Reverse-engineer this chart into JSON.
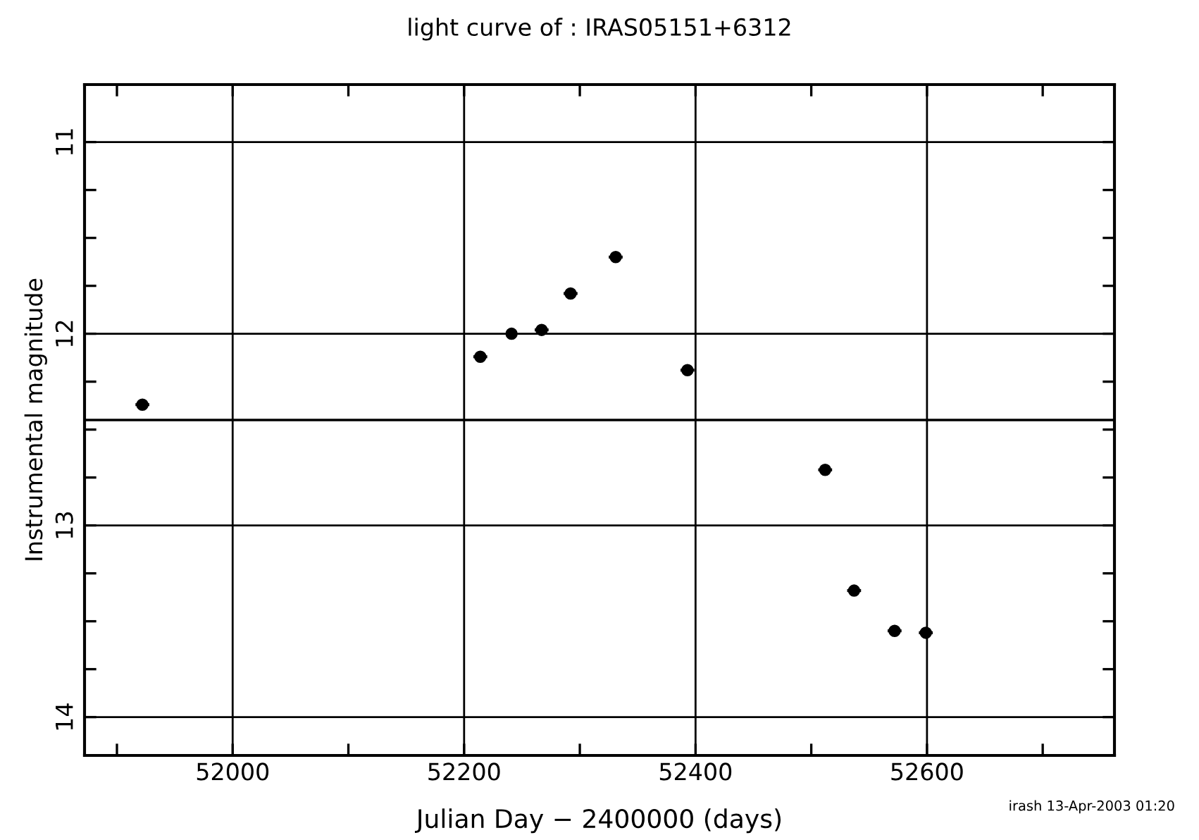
{
  "chart_data": {
    "type": "scatter",
    "title": "light curve of : IRAS05151+6312",
    "xlabel": "Julian Day − 2400000 (days)",
    "ylabel": "Instrumental magnitude",
    "x": [
      51922,
      52214,
      52241,
      52267,
      52292,
      52331,
      52393,
      52512,
      52537,
      52572,
      52599
    ],
    "values": [
      12.37,
      12.12,
      12.0,
      11.98,
      11.79,
      11.6,
      12.19,
      12.71,
      13.34,
      13.55,
      13.56
    ],
    "xerrors": [
      6,
      6,
      4,
      6,
      6,
      6,
      6,
      6,
      6,
      6,
      6
    ],
    "color": "#000000",
    "marker": "circle",
    "xlim": [
      51872,
      52762
    ],
    "ylim": [
      14.2,
      10.7
    ],
    "xticks": [
      {
        "value": 51900,
        "label": null
      },
      52000,
      {
        "value": 52100,
        "label": null
      },
      52200,
      {
        "value": 52300,
        "label": null
      },
      52400,
      {
        "value": 52500,
        "label": null
      },
      52600,
      {
        "value": 52700,
        "label": null
      }
    ],
    "yticks": [
      11,
      {
        "value": 11.25,
        "label": null
      },
      {
        "value": 11.5,
        "label": null
      },
      {
        "value": 11.75,
        "label": null
      },
      12,
      {
        "value": 12.25,
        "label": null
      },
      {
        "value": 12.5,
        "label": null
      },
      {
        "value": 12.75,
        "label": null
      },
      13,
      {
        "value": 13.25,
        "label": null
      },
      {
        "value": 13.5,
        "label": null
      },
      {
        "value": 13.75,
        "label": null
      },
      14
    ],
    "grid": true,
    "ref_lines": [
      {
        "axis": "y",
        "value": 12.45,
        "color": "#000000"
      }
    ],
    "annotations": [
      "irash 13-Apr-2003 01:20"
    ]
  }
}
